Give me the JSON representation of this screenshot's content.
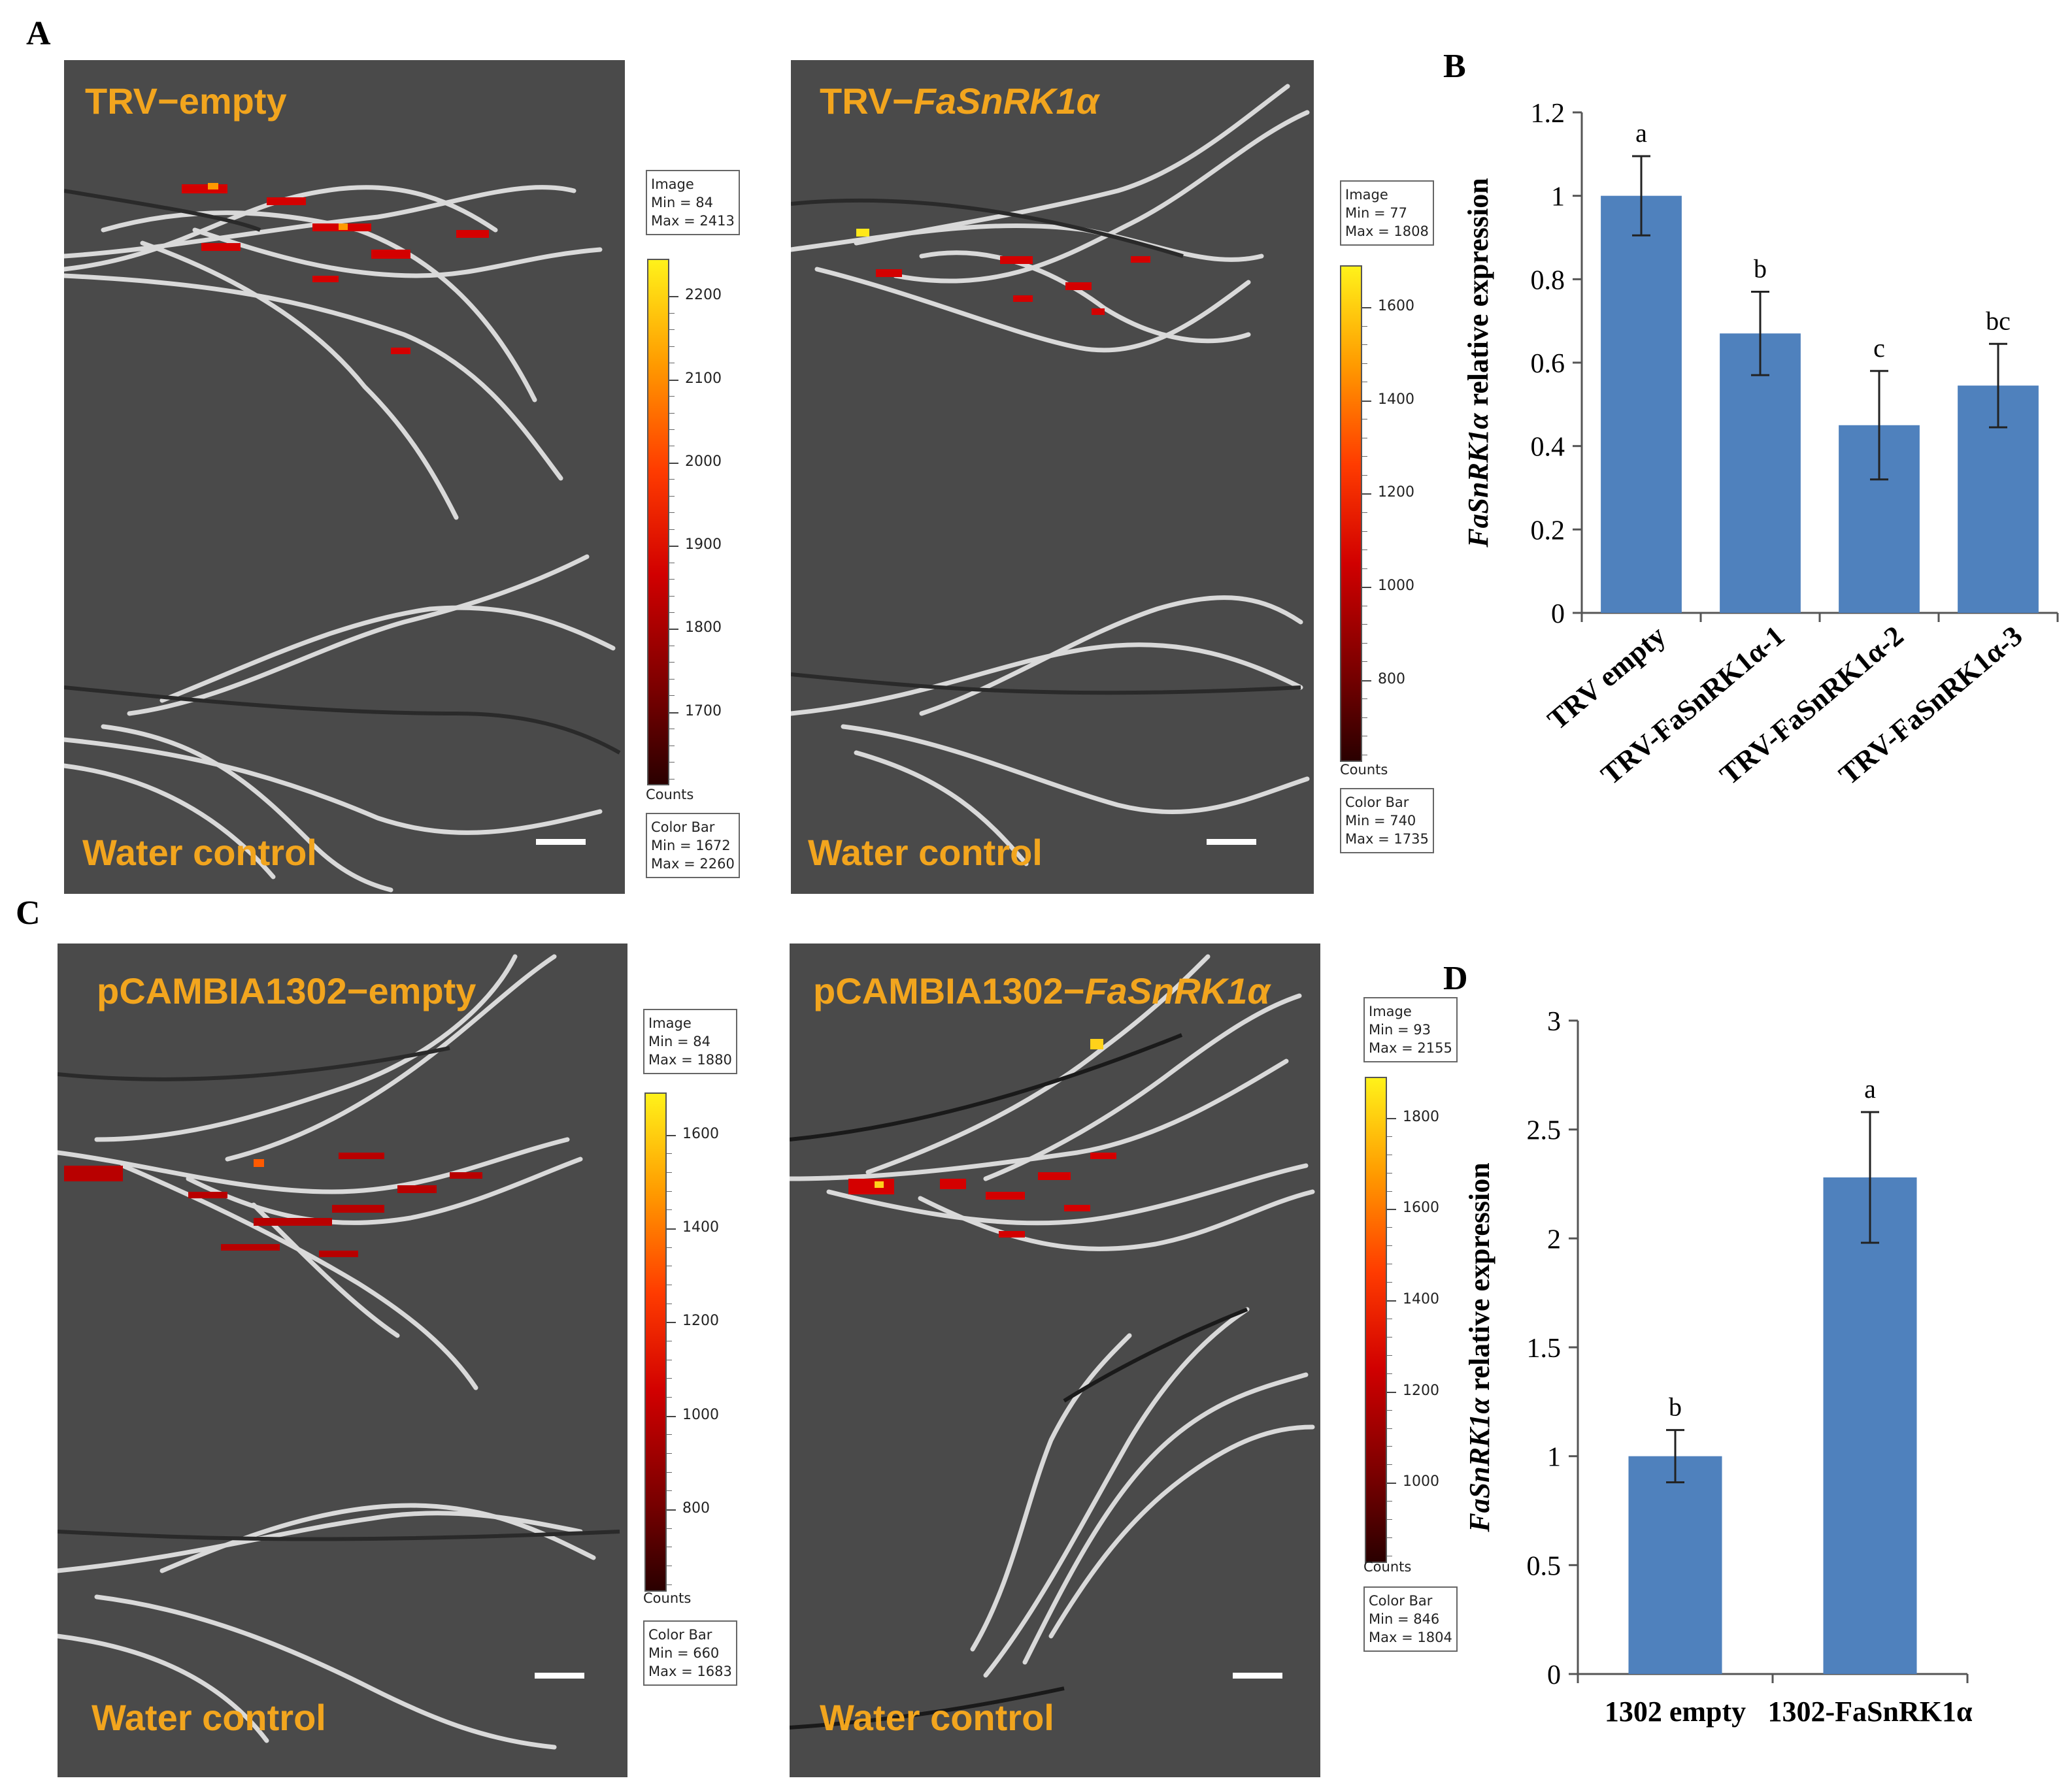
{
  "panels": {
    "A": "A",
    "B": "B",
    "C": "C",
    "D": "D"
  },
  "imaging": {
    "A_left": {
      "top_label": "TRV−empty",
      "bottom_label": "Water control",
      "image_box": [
        "Image",
        "Min = 84",
        "Max = 2413"
      ],
      "color_box": [
        "Color Bar",
        "Min = 1672",
        "Max = 2260"
      ],
      "ticks": [
        "2200",
        "2100",
        "2000",
        "1900",
        "1800",
        "1700"
      ],
      "counts": "Counts"
    },
    "A_right": {
      "top_label_prefix": "TRV−",
      "top_label_gene": "FaSnRK1α",
      "bottom_label": "Water control",
      "image_box": [
        "Image",
        "Min = 77",
        "Max = 1808"
      ],
      "color_box": [
        "Color Bar",
        "Min = 740",
        "Max = 1735"
      ],
      "ticks": [
        "1600",
        "1400",
        "1200",
        "1000",
        "800"
      ],
      "counts": "Counts"
    },
    "C_left": {
      "top_label": "pCAMBIA1302−empty",
      "bottom_label": "Water control",
      "image_box": [
        "Image",
        "Min = 84",
        "Max = 1880"
      ],
      "color_box": [
        "Color Bar",
        "Min = 660",
        "Max = 1683"
      ],
      "ticks": [
        "1600",
        "1400",
        "1200",
        "1000",
        "800"
      ],
      "counts": "Counts"
    },
    "C_right": {
      "top_label_prefix": "pCAMBIA1302−",
      "top_label_gene": "FaSnRK1α",
      "bottom_label": "Water control",
      "image_box": [
        "Image",
        "Min = 93",
        "Max = 2155"
      ],
      "color_box": [
        "Color Bar",
        "Min = 846",
        "Max = 1804"
      ],
      "ticks": [
        "1800",
        "1600",
        "1400",
        "1200",
        "1000"
      ],
      "counts": "Counts"
    }
  },
  "colors": {
    "bar": "#4f81bd",
    "label": "#f2a51e"
  },
  "chart_data": [
    {
      "id": "B",
      "type": "bar",
      "categories": [
        "TRV empty",
        "TRV-FaSnRK1α-1",
        "TRV-FaSnRK1α-2",
        "TRV-FaSnRK1α-3"
      ],
      "values": [
        1.0,
        0.67,
        0.45,
        0.545
      ],
      "errors": [
        0.095,
        0.1,
        0.13,
        0.1
      ],
      "letters": [
        "a",
        "b",
        "c",
        "bc"
      ],
      "ylabel_gene": "FaSnRK1α",
      "ylabel_rest": " relative expression",
      "ylim": [
        0,
        1.2
      ],
      "yticks": [
        "0",
        "0.2",
        "0.4",
        "0.6",
        "0.8",
        "1",
        "1.2"
      ]
    },
    {
      "id": "D",
      "type": "bar",
      "categories": [
        "1302 empty",
        "1302-FaSnRK1α"
      ],
      "values": [
        1.0,
        2.28
      ],
      "errors": [
        0.12,
        0.3
      ],
      "letters": [
        "b",
        "a"
      ],
      "ylabel_gene": "FaSnRK1α",
      "ylabel_rest": " relative expression",
      "ylim": [
        0,
        3
      ],
      "yticks": [
        "0",
        "0.5",
        "1",
        "1.5",
        "2",
        "2.5",
        "3"
      ]
    }
  ]
}
